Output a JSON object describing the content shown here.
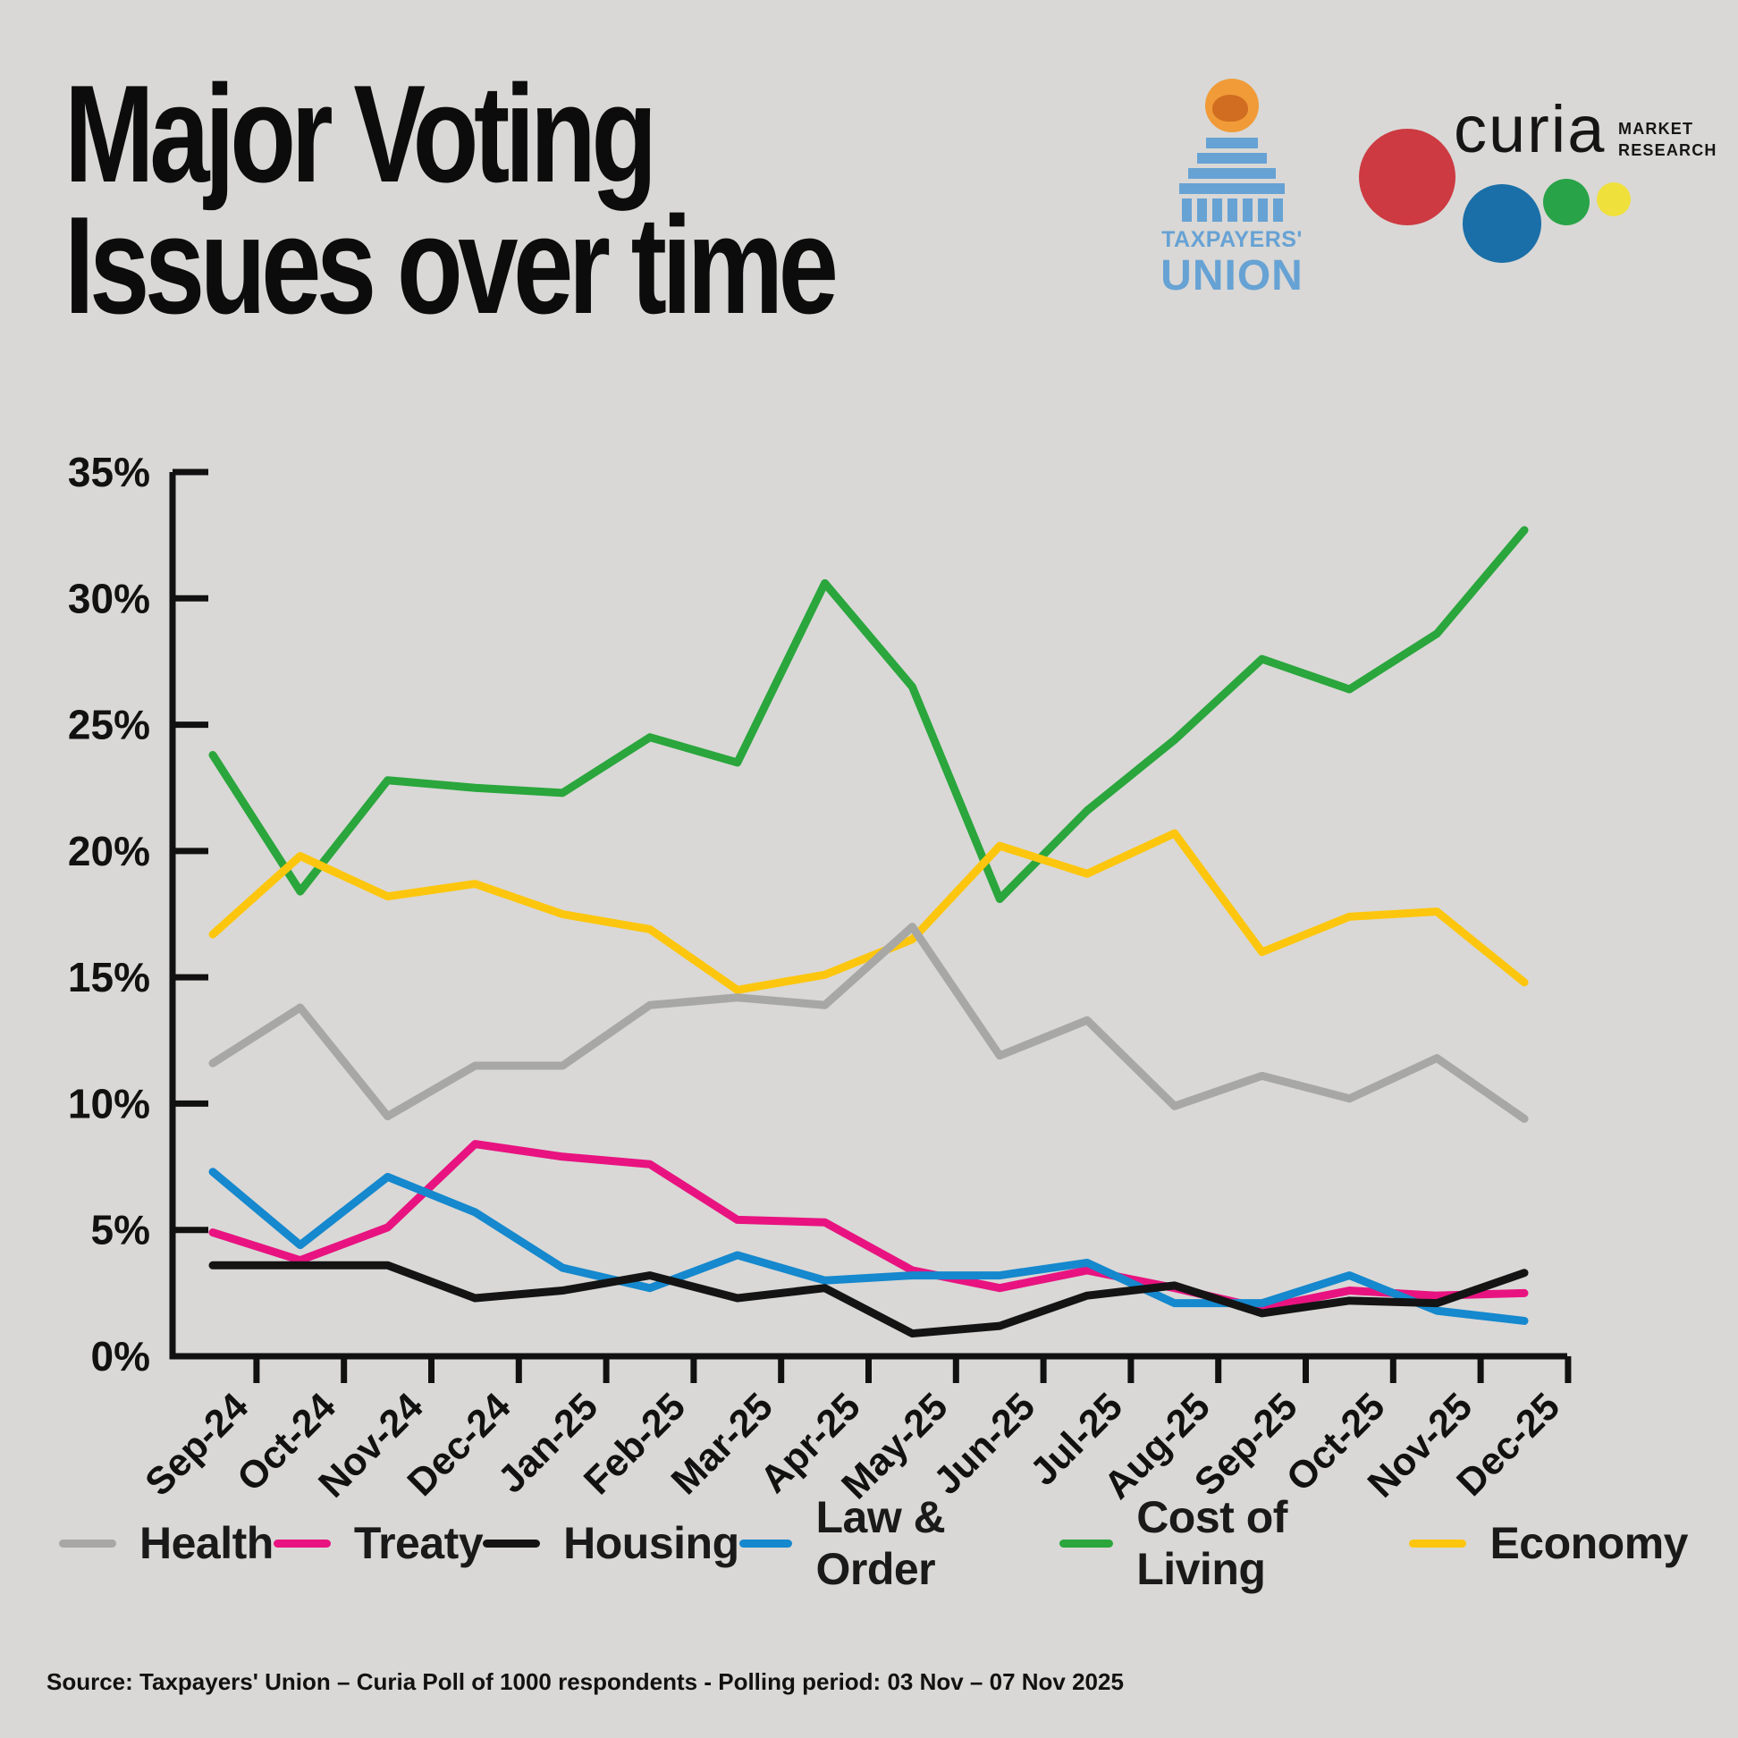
{
  "title": {
    "line1": "Major Voting",
    "line2": "Issues over time"
  },
  "logos": {
    "taxpayers_union": {
      "line1": "TAXPAYERS'",
      "line2": "UNION",
      "blue": "#67a2d4",
      "kiwi_orange": "#f09b38",
      "kiwi_dark": "#d06d20"
    },
    "curia": {
      "name": "curia",
      "sub_line1": "MARKET",
      "sub_line2": "RESEARCH",
      "red": "#cd3a41",
      "blue": "#1a6fa8",
      "green": "#29a347",
      "yellow": "#f0e03b"
    }
  },
  "chart_data": {
    "type": "line",
    "x_labels": [
      "Sep-24",
      "Oct-24",
      "Nov-24",
      "Dec-24",
      "Jan-25",
      "Feb-25",
      "Mar-25",
      "Apr-25",
      "May-25",
      "Jun-25",
      "Jul-25",
      "Aug-25",
      "Sep-25",
      "Oct-25",
      "Nov-25",
      "Dec-25"
    ],
    "ylim": [
      0,
      35
    ],
    "ytick_step": 5,
    "ytick_suffix": "%",
    "grid": false,
    "legend_position": "bottom",
    "series": [
      {
        "name": "Health",
        "color": "#a7a7a5",
        "values": [
          11.6,
          13.8,
          9.5,
          11.5,
          11.5,
          13.9,
          14.2,
          13.9,
          17.0,
          11.9,
          13.3,
          9.9,
          11.1,
          10.2,
          11.8,
          9.4
        ]
      },
      {
        "name": "Treaty",
        "color": "#e81380",
        "values": [
          4.9,
          3.8,
          5.1,
          8.4,
          7.9,
          7.6,
          5.4,
          5.3,
          3.4,
          2.7,
          3.4,
          2.7,
          1.9,
          2.6,
          2.4,
          2.5
        ]
      },
      {
        "name": "Housing",
        "color": "#141414",
        "values": [
          3.6,
          3.6,
          3.6,
          2.3,
          2.6,
          3.2,
          2.3,
          2.7,
          0.9,
          1.2,
          2.4,
          2.8,
          1.7,
          2.2,
          2.1,
          3.3
        ]
      },
      {
        "name": "Law & Order",
        "color": "#1588ce",
        "values": [
          7.3,
          4.4,
          7.1,
          5.7,
          3.5,
          2.7,
          4.0,
          3.0,
          3.2,
          3.2,
          3.7,
          2.1,
          2.1,
          3.2,
          1.8,
          1.4
        ]
      },
      {
        "name": "Cost of Living",
        "color": "#2aa63c",
        "values": [
          23.8,
          18.4,
          22.8,
          22.5,
          22.3,
          24.5,
          23.5,
          30.6,
          26.5,
          18.1,
          21.6,
          24.4,
          27.6,
          26.4,
          28.6,
          32.7
        ]
      },
      {
        "name": "Economy",
        "color": "#fdc60e",
        "values": [
          16.7,
          19.8,
          18.2,
          18.7,
          17.5,
          16.9,
          14.5,
          15.1,
          16.5,
          20.2,
          19.1,
          20.7,
          16.0,
          17.4,
          17.6,
          14.8
        ]
      }
    ]
  },
  "source": "Source: Taxpayers' Union – Curia Poll of 1000 respondents -  Polling period: 03 Nov – 07 Nov 2025",
  "colors": {
    "background": "#d9d8d6",
    "axis": "#111111"
  }
}
